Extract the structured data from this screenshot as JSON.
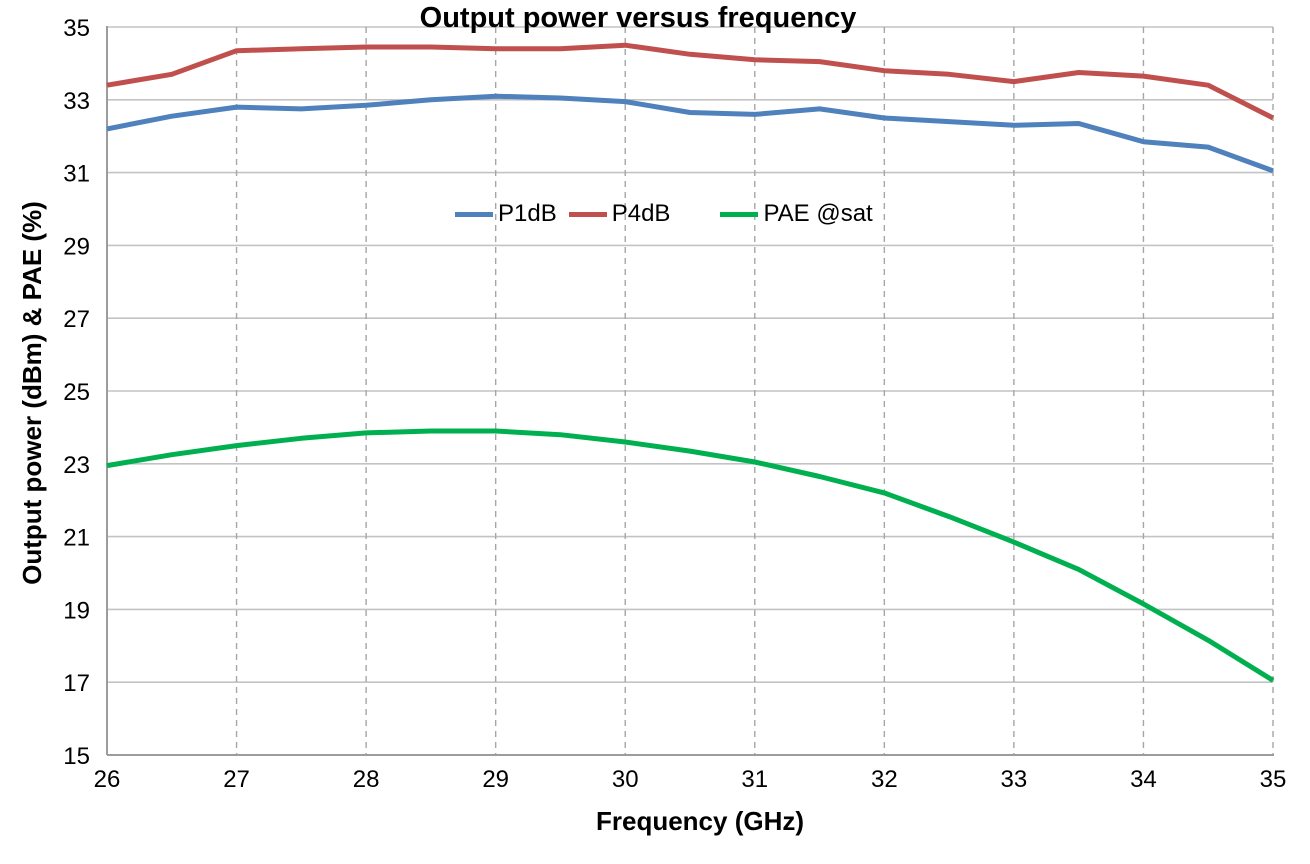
{
  "title": "Output power versus frequency",
  "axes": {
    "x_title": "Frequency (GHz)",
    "y_title": "Output power (dBm) & PAE (%)"
  },
  "legend": {
    "items": [
      {
        "label": "P1dB"
      },
      {
        "label": "P4dB"
      },
      {
        "label": "PAE @sat"
      }
    ]
  },
  "chart_data": {
    "type": "line",
    "title": "Output power versus frequency",
    "xlabel": "Frequency (GHz)",
    "ylabel": "Output power (dBm) & PAE (%)",
    "xlim": [
      26,
      35
    ],
    "ylim": [
      15,
      35
    ],
    "x_ticks": [
      26,
      27,
      28,
      29,
      30,
      31,
      32,
      33,
      34,
      35
    ],
    "y_ticks": [
      15,
      17,
      19,
      21,
      23,
      25,
      27,
      29,
      31,
      33,
      35
    ],
    "grid": {
      "horizontal": "solid",
      "vertical": "dashed",
      "h_color": "#c3c3c3",
      "v_color": "#a6a6a6",
      "axis_color": "#9c9c9c"
    },
    "legend_position": "top-center-inside",
    "x": [
      26,
      26.5,
      27,
      27.5,
      28,
      28.5,
      29,
      29.5,
      30,
      30.5,
      31,
      31.5,
      32,
      32.5,
      33,
      33.5,
      34,
      34.5,
      35
    ],
    "series": [
      {
        "name": "P1dB",
        "color": "#4f81bd",
        "values": [
          32.2,
          32.55,
          32.8,
          32.75,
          32.85,
          33.0,
          33.1,
          33.05,
          32.95,
          32.65,
          32.6,
          32.75,
          32.5,
          32.4,
          32.3,
          32.35,
          31.85,
          31.7,
          31.05
        ]
      },
      {
        "name": "P4dB",
        "color": "#c0504d",
        "values": [
          33.4,
          33.7,
          34.35,
          34.4,
          34.45,
          34.45,
          34.4,
          34.4,
          34.5,
          34.25,
          34.1,
          34.05,
          33.8,
          33.7,
          33.5,
          33.75,
          33.65,
          33.4,
          32.5
        ]
      },
      {
        "name": "PAE @sat",
        "color": "#00b050",
        "values": [
          22.95,
          23.25,
          23.5,
          23.7,
          23.85,
          23.9,
          23.9,
          23.8,
          23.6,
          23.35,
          23.05,
          22.65,
          22.2,
          21.55,
          20.85,
          20.1,
          19.15,
          18.15,
          17.05
        ]
      }
    ]
  }
}
